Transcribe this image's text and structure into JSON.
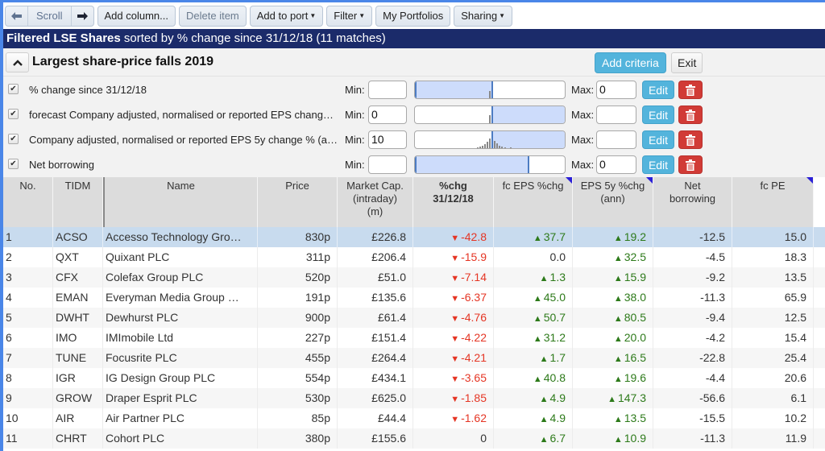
{
  "toolbar": {
    "scroll_label": "Scroll",
    "scroll_left_icon": "arrow-left",
    "scroll_right_icon": "arrow-right",
    "add_column": "Add column...",
    "delete_item": "Delete item",
    "add_to_port": "Add to port",
    "filter": "Filter",
    "my_portfolios": "My Portfolios",
    "sharing": "Sharing",
    "caret": "▼"
  },
  "titlebar": {
    "bold": "Filtered LSE Shares",
    "rest": " sorted by % change since 31/12/18 (11 matches)"
  },
  "criteria_panel": {
    "title": "Largest share-price falls 2019",
    "collapse_icon": "chevron-up",
    "add_criteria": "Add criteria",
    "exit": "Exit",
    "min_label": "Min:",
    "max_label": "Max:",
    "edit_label": "Edit",
    "rows": [
      {
        "checked": true,
        "label": "% change since 31/12/18",
        "min": "",
        "max": "0"
      },
      {
        "checked": true,
        "label": "forecast Company adjusted, normalised or reported EPS chang…",
        "min": "0",
        "max": ""
      },
      {
        "checked": true,
        "label": "Company adjusted, normalised or reported EPS 5y change % (a…",
        "min": "10",
        "max": ""
      },
      {
        "checked": true,
        "label": "Net borrowing",
        "min": "",
        "max": "0"
      }
    ]
  },
  "table": {
    "columns": [
      {
        "key": "no",
        "label": "No."
      },
      {
        "key": "tidm",
        "label": "TIDM"
      },
      {
        "key": "name",
        "label": "Name"
      },
      {
        "key": "price",
        "label": "Price"
      },
      {
        "key": "mcap",
        "label": "Market Cap. (intraday) (m)"
      },
      {
        "key": "chg",
        "label": "%chg 31/12/18"
      },
      {
        "key": "fceps",
        "label": "fc EPS %chg"
      },
      {
        "key": "eps5y",
        "label": "EPS 5y %chg (ann)"
      },
      {
        "key": "netb",
        "label": "Net borrowing"
      },
      {
        "key": "fcpe",
        "label": "fc PE"
      }
    ],
    "header_lines": {
      "no": [
        "No."
      ],
      "tidm": [
        "TIDM"
      ],
      "name": [
        "Name"
      ],
      "price": [
        "Price"
      ],
      "mcap": [
        "Market Cap.",
        "(intraday)",
        "(m)"
      ],
      "chg": [
        "%chg",
        "31/12/18"
      ],
      "fceps": [
        "fc EPS %chg"
      ],
      "eps5y": [
        "EPS 5y %chg",
        "(ann)"
      ],
      "netb": [
        "Net",
        "borrowing"
      ],
      "fcpe": [
        "fc PE"
      ]
    },
    "rows": [
      {
        "no": "1",
        "tidm": "ACSO",
        "name": "Accesso Technology Gro…",
        "price": "830p",
        "mcap": "£226.8",
        "chg": "-42.8",
        "chg_dir": "down",
        "fceps": "37.7",
        "fceps_dir": "up",
        "eps5y": "19.2",
        "eps5y_dir": "up",
        "netb": "-12.5",
        "fcpe": "15.0"
      },
      {
        "no": "2",
        "tidm": "QXT",
        "name": "Quixant PLC",
        "price": "311p",
        "mcap": "£206.4",
        "chg": "-15.9",
        "chg_dir": "down",
        "fceps": "0.0",
        "fceps_dir": "none",
        "eps5y": "32.5",
        "eps5y_dir": "up",
        "netb": "-4.5",
        "fcpe": "18.3"
      },
      {
        "no": "3",
        "tidm": "CFX",
        "name": "Colefax Group PLC",
        "price": "520p",
        "mcap": "£51.0",
        "chg": "-7.14",
        "chg_dir": "down",
        "fceps": "1.3",
        "fceps_dir": "up",
        "eps5y": "15.9",
        "eps5y_dir": "up",
        "netb": "-9.2",
        "fcpe": "13.5"
      },
      {
        "no": "4",
        "tidm": "EMAN",
        "name": "Everyman Media Group …",
        "price": "191p",
        "mcap": "£135.6",
        "chg": "-6.37",
        "chg_dir": "down",
        "fceps": "45.0",
        "fceps_dir": "up",
        "eps5y": "38.0",
        "eps5y_dir": "up",
        "netb": "-11.3",
        "fcpe": "65.9"
      },
      {
        "no": "5",
        "tidm": "DWHT",
        "name": "Dewhurst PLC",
        "price": "900p",
        "mcap": "£61.4",
        "chg": "-4.76",
        "chg_dir": "down",
        "fceps": "50.7",
        "fceps_dir": "up",
        "eps5y": "80.5",
        "eps5y_dir": "up",
        "netb": "-9.4",
        "fcpe": "12.5"
      },
      {
        "no": "6",
        "tidm": "IMO",
        "name": "IMImobile Ltd",
        "price": "227p",
        "mcap": "£151.4",
        "chg": "-4.22",
        "chg_dir": "down",
        "fceps": "31.2",
        "fceps_dir": "up",
        "eps5y": "20.0",
        "eps5y_dir": "up",
        "netb": "-4.2",
        "fcpe": "15.4"
      },
      {
        "no": "7",
        "tidm": "TUNE",
        "name": "Focusrite PLC",
        "price": "455p",
        "mcap": "£264.4",
        "chg": "-4.21",
        "chg_dir": "down",
        "fceps": "1.7",
        "fceps_dir": "up",
        "eps5y": "16.5",
        "eps5y_dir": "up",
        "netb": "-22.8",
        "fcpe": "25.4"
      },
      {
        "no": "8",
        "tidm": "IGR",
        "name": "IG Design Group PLC",
        "price": "554p",
        "mcap": "£434.1",
        "chg": "-3.65",
        "chg_dir": "down",
        "fceps": "40.8",
        "fceps_dir": "up",
        "eps5y": "19.6",
        "eps5y_dir": "up",
        "netb": "-4.4",
        "fcpe": "20.6"
      },
      {
        "no": "9",
        "tidm": "GROW",
        "name": "Draper Esprit PLC",
        "price": "530p",
        "mcap": "£625.0",
        "chg": "-1.85",
        "chg_dir": "down",
        "fceps": "4.9",
        "fceps_dir": "up",
        "eps5y": "147.3",
        "eps5y_dir": "up",
        "netb": "-56.6",
        "fcpe": "6.1"
      },
      {
        "no": "10",
        "tidm": "AIR",
        "name": "Air Partner PLC",
        "price": "85p",
        "mcap": "£44.4",
        "chg": "-1.62",
        "chg_dir": "down",
        "fceps": "4.9",
        "fceps_dir": "up",
        "eps5y": "13.5",
        "eps5y_dir": "up",
        "netb": "-15.5",
        "fcpe": "10.2"
      },
      {
        "no": "11",
        "tidm": "CHRT",
        "name": "Cohort PLC",
        "price": "380p",
        "mcap": "£155.6",
        "chg": "0",
        "chg_dir": "none",
        "fceps": "6.7",
        "fceps_dir": "up",
        "eps5y": "10.9",
        "eps5y_dir": "up",
        "netb": "-11.3",
        "fcpe": "11.9"
      }
    ]
  },
  "colors": {
    "titlebar_bg": "#1b2b6a",
    "accent_blue": "#53b4dc",
    "delete_red": "#d13b36",
    "negative": "#e53524",
    "positive": "#2d7a1a",
    "selected_row": "#c8dbee",
    "header_bg": "#dcdcdc"
  },
  "indicators": {
    "up": "▲",
    "down": "▼"
  }
}
